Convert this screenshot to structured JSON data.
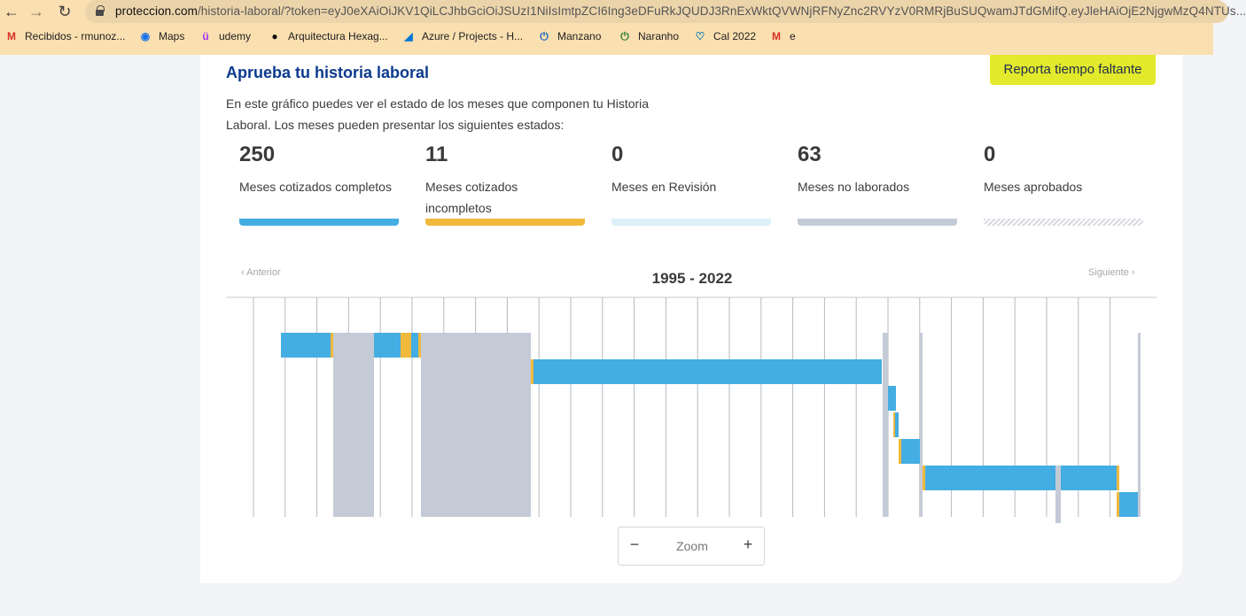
{
  "browser": {
    "url_host": "proteccion.com",
    "url_path": "/historia-laboral/?token=eyJ0eXAiOiJKV1QiLCJhbGciOiJSUzI1NiIsImtpZCI6Ing3eDFuRkJQUDJ3RnExWktQVWNjRFNyZnc2RVYzV0RMRjBuSUQwamJTdGMifQ.eyJleHAiOjE2NjgwMzQ4NTUs...",
    "bookmarks": [
      {
        "label": "Recibidos - rmunoz...",
        "icon": "gmail-icon",
        "color": "#d93025"
      },
      {
        "label": "Maps",
        "icon": "maps-icon",
        "color": "#1a73e8"
      },
      {
        "label": "udemy",
        "icon": "udemy-icon",
        "color": "#a435f0"
      },
      {
        "label": "Arquitectura Hexag...",
        "icon": "circle-logo-icon",
        "color": "#111111"
      },
      {
        "label": "Azure / Projects - H...",
        "icon": "azure-devops-icon",
        "color": "#0078d4"
      },
      {
        "label": "Manzano",
        "icon": "power-icon",
        "color": "#1565c0"
      },
      {
        "label": "Naranho",
        "icon": "power-icon",
        "color": "#2e7d32"
      },
      {
        "label": "Cal 2022",
        "icon": "heart-location-icon",
        "color": "#0277bd"
      },
      {
        "label": "e",
        "icon": "gmail-icon",
        "color": "#d93025"
      }
    ]
  },
  "page": {
    "title": "Aprueba tu historia laboral",
    "report_button": "Reporta tiempo faltante",
    "description": "En este gráfico puedes ver el estado de los meses que componen tu Historia Laboral. Los meses pueden presentar los siguientes estados:"
  },
  "stats": [
    {
      "value": "250",
      "label": "Meses cotizados completos",
      "color": "#44ade2"
    },
    {
      "value": "11",
      "label": "Meses cotizados incompletos",
      "color": "#f0b93c"
    },
    {
      "value": "0",
      "label": "Meses en Revisión",
      "color": "#dcf0f8"
    },
    {
      "value": "63",
      "label": "Meses no laborados",
      "color": "#c4cad6"
    },
    {
      "value": "0",
      "label": "Meses aprobados",
      "color": "hatched-gray"
    }
  ],
  "timeline": {
    "prev_label": "Anterior",
    "next_label": "Siguiente",
    "range_label": "1995 - 2022",
    "zoom_label": "Zoom",
    "zoom_minus": "−",
    "zoom_plus": "+",
    "colors": {
      "complete": "#44ade2",
      "incomplete": "#f0b93c",
      "not_worked": "#c4cad6"
    }
  }
}
